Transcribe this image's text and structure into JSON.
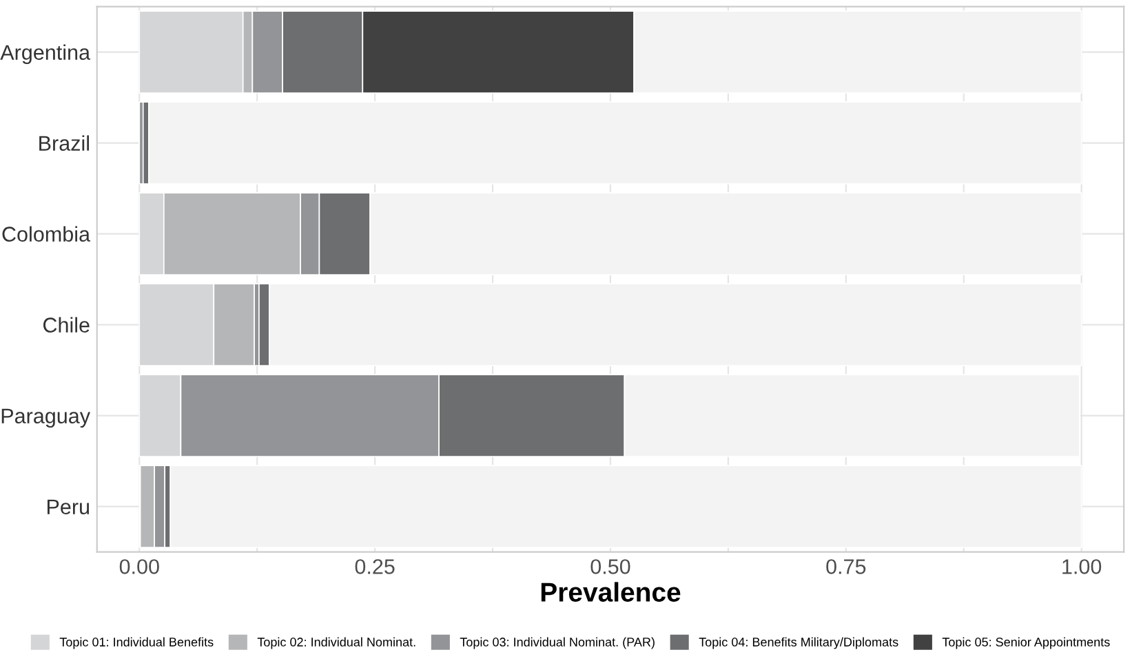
{
  "chart_data": {
    "type": "bar",
    "orientation": "horizontal",
    "stacked": true,
    "xlabel": "Prevalence",
    "categories": [
      "Argentina",
      "Brazil",
      "Colombia",
      "Chile",
      "Paraguay",
      "Peru"
    ],
    "series": [
      {
        "name": "Topic 01: Individual Benefits",
        "color": "#d4d5d7",
        "values": [
          0.11,
          0,
          0.026,
          0.079,
          0.044,
          0.001
        ]
      },
      {
        "name": "Topic 02: Individual Nominat.",
        "color": "#b5b6b8",
        "values": [
          0.01,
          0,
          0.145,
          0.043,
          null,
          0.015
        ]
      },
      {
        "name": "Topic 03: Individual Nominat. (PAR)",
        "color": "#939497",
        "values": [
          0.032,
          0.004,
          0.02,
          0.005,
          0.274,
          0.011
        ]
      },
      {
        "name": "Topic 04: Benefits Military/Diplomats",
        "color": "#6d6e70",
        "values": [
          0.085,
          0.006,
          0.054,
          0.011,
          0.197,
          0.006
        ]
      },
      {
        "name": "Topic 05: Senior Appointments",
        "color": "#414141",
        "values": [
          0.288,
          0,
          0,
          0,
          0,
          0
        ]
      },
      {
        "color": "#f2f3f2",
        "values": [
          0.475,
          0.99,
          0.755,
          0.862,
          0.483,
          0.967
        ]
      }
    ],
    "xlim": [
      -0.045,
      1.045
    ],
    "xticks": [
      {
        "value": 0,
        "label": "0.00"
      },
      {
        "value": 0.125,
        "label": null
      },
      {
        "value": 0.25,
        "label": "0.25"
      },
      {
        "value": 0.375,
        "label": null
      },
      {
        "value": 0.5,
        "label": "0.50"
      },
      {
        "value": 0.625,
        "label": null
      },
      {
        "value": 0.75,
        "label": "0.75"
      },
      {
        "value": 0.875,
        "label": null
      },
      {
        "value": 1,
        "label": "1.00"
      }
    ],
    "grid": true,
    "legend": "bottom"
  }
}
